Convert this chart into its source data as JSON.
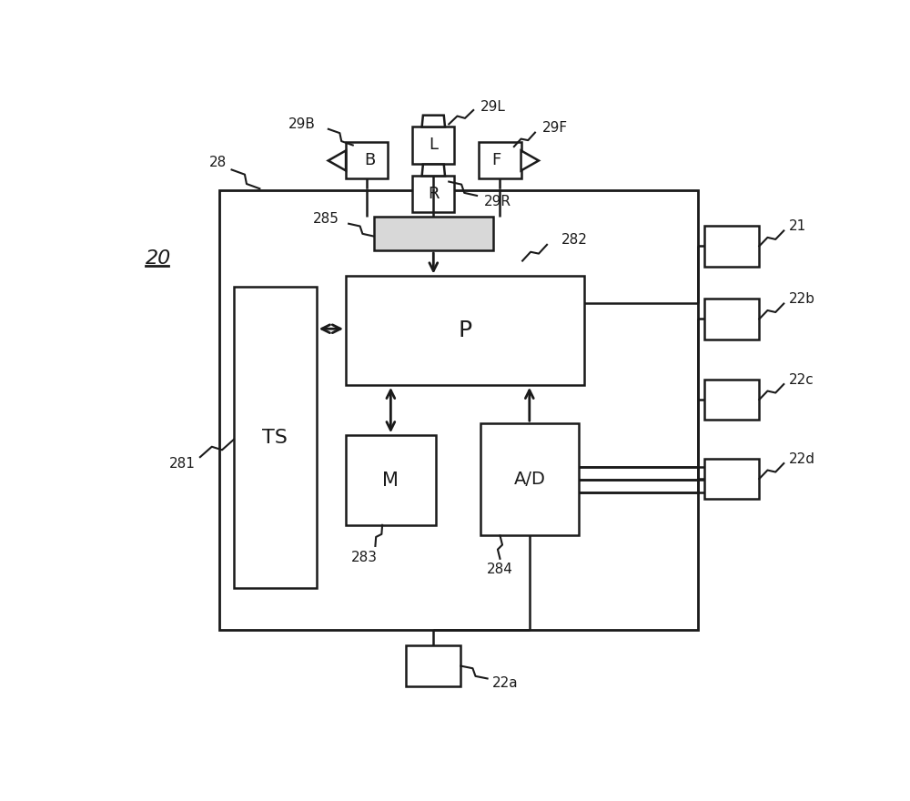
{
  "bg_color": "#ffffff",
  "line_color": "#1a1a1a",
  "fig_width": 10.0,
  "fig_height": 8.8,
  "labels": {
    "20": "20",
    "28": "28",
    "281": "281",
    "282": "282",
    "283": "283",
    "284": "284",
    "285": "285",
    "29L": "29L",
    "29B": "29B",
    "29F": "29F",
    "29R": "29R",
    "21": "21",
    "22a": "22a",
    "22b": "22b",
    "22c": "22c",
    "22d": "22d",
    "P": "P",
    "TS": "TS",
    "M": "M",
    "AD": "A/D",
    "L": "L",
    "B": "B",
    "F": "F",
    "R": "R"
  }
}
